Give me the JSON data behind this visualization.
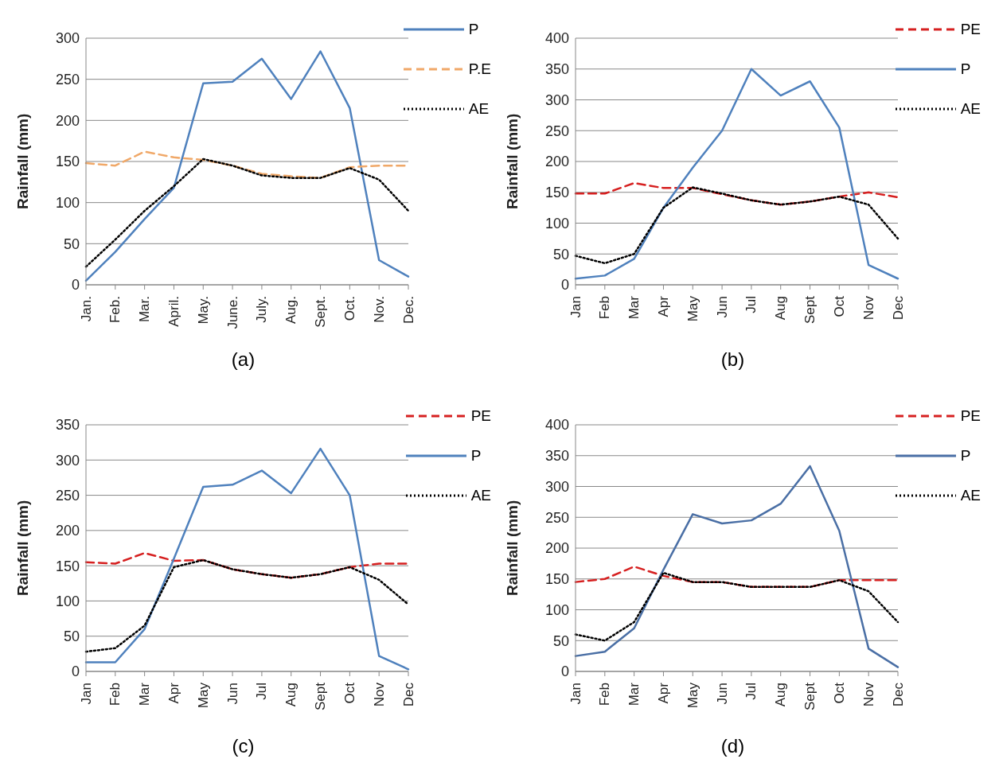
{
  "chart_data": [
    {
      "type": "line",
      "categories": [
        "Jan.",
        "Feb.",
        "Mar.",
        "April.",
        "May.",
        "June.",
        "July.",
        "Aug.",
        "Sept.",
        "Oct.",
        "Nov.",
        "Dec."
      ],
      "ylabel": "Rainfall (mm)",
      "ylim": [
        0,
        300
      ],
      "yticks": [
        0,
        50,
        100,
        150,
        200,
        250,
        300
      ],
      "grid": "y",
      "legend": "top right",
      "annotations": [
        "(a)"
      ],
      "series": [
        {
          "name": "P",
          "color": "#4f81bd",
          "line_style": "solid",
          "values": [
            5,
            40,
            80,
            118,
            245,
            247,
            275,
            226,
            284,
            215,
            30,
            10
          ]
        },
        {
          "name": "P.E",
          "color": "#f0a868",
          "line_style": "dashed",
          "values": [
            148,
            145,
            162,
            155,
            152,
            145,
            135,
            132,
            130,
            143,
            145,
            145
          ]
        },
        {
          "name": "AE",
          "color": "#000000",
          "line_style": "dotted",
          "values": [
            22,
            55,
            90,
            120,
            153,
            145,
            133,
            130,
            130,
            142,
            128,
            90
          ]
        }
      ]
    },
    {
      "type": "line",
      "categories": [
        "Jan",
        "Feb",
        "Mar",
        "Apr",
        "May",
        "Jun",
        "Jul",
        "Aug",
        "Sept",
        "Oct",
        "Nov",
        "Dec"
      ],
      "ylabel": "Rainfall (mm)",
      "ylim": [
        0,
        400
      ],
      "yticks": [
        0,
        50,
        100,
        150,
        200,
        250,
        300,
        350,
        400
      ],
      "grid": "y",
      "legend": "top right",
      "annotations": [
        "(b)"
      ],
      "series": [
        {
          "name": "PE",
          "color": "#d62020",
          "line_style": "dashed",
          "values": [
            148,
            148,
            165,
            157,
            157,
            147,
            137,
            130,
            135,
            143,
            150,
            142
          ]
        },
        {
          "name": "P",
          "color": "#4f81bd",
          "line_style": "solid",
          "values": [
            10,
            15,
            42,
            125,
            190,
            250,
            350,
            307,
            330,
            255,
            32,
            10
          ]
        },
        {
          "name": "AE",
          "color": "#000000",
          "line_style": "dotted",
          "values": [
            47,
            35,
            50,
            125,
            158,
            148,
            137,
            130,
            135,
            143,
            130,
            75
          ]
        }
      ]
    },
    {
      "type": "line",
      "categories": [
        "Jan",
        "Feb",
        "Mar",
        "Apr",
        "May",
        "Jun",
        "Jul",
        "Aug",
        "Sept",
        "Oct",
        "Nov",
        "Dec"
      ],
      "ylabel": "Rainfall (mm)",
      "ylim": [
        0,
        350
      ],
      "yticks": [
        0,
        50,
        100,
        150,
        200,
        250,
        300,
        350
      ],
      "grid": "y",
      "legend": "top right",
      "annotations": [
        "(c)"
      ],
      "series": [
        {
          "name": "PE",
          "color": "#d62020",
          "line_style": "dashed",
          "values": [
            155,
            153,
            168,
            157,
            158,
            145,
            138,
            133,
            138,
            148,
            153,
            153
          ]
        },
        {
          "name": "P",
          "color": "#4f81bd",
          "line_style": "solid",
          "values": [
            13,
            13,
            60,
            160,
            262,
            265,
            285,
            253,
            316,
            250,
            22,
            3
          ]
        },
        {
          "name": "AE",
          "color": "#000000",
          "line_style": "dotted",
          "values": [
            28,
            33,
            65,
            148,
            158,
            145,
            138,
            133,
            138,
            148,
            130,
            95
          ]
        }
      ]
    },
    {
      "type": "line",
      "categories": [
        "Jan",
        "Feb",
        "Mar",
        "Apr",
        "May",
        "Jun",
        "Jul",
        "Aug",
        "Sept",
        "Oct",
        "Nov",
        "Dec"
      ],
      "ylabel": "Rainfall (mm)",
      "ylim": [
        0,
        400
      ],
      "yticks": [
        0,
        50,
        100,
        150,
        200,
        250,
        300,
        350,
        400
      ],
      "grid": "y",
      "legend": "top right",
      "annotations": [
        "(d)"
      ],
      "series": [
        {
          "name": "PE",
          "color": "#d62020",
          "line_style": "dashed",
          "values": [
            145,
            150,
            170,
            155,
            145,
            145,
            137,
            137,
            137,
            148,
            148,
            148
          ]
        },
        {
          "name": "P",
          "color": "#4a6fa5",
          "line_style": "solid",
          "values": [
            25,
            32,
            70,
            165,
            255,
            240,
            245,
            272,
            333,
            228,
            37,
            7
          ]
        },
        {
          "name": "AE",
          "color": "#000000",
          "line_style": "dotted",
          "values": [
            60,
            50,
            80,
            160,
            145,
            145,
            137,
            137,
            137,
            148,
            130,
            80
          ]
        }
      ]
    }
  ]
}
